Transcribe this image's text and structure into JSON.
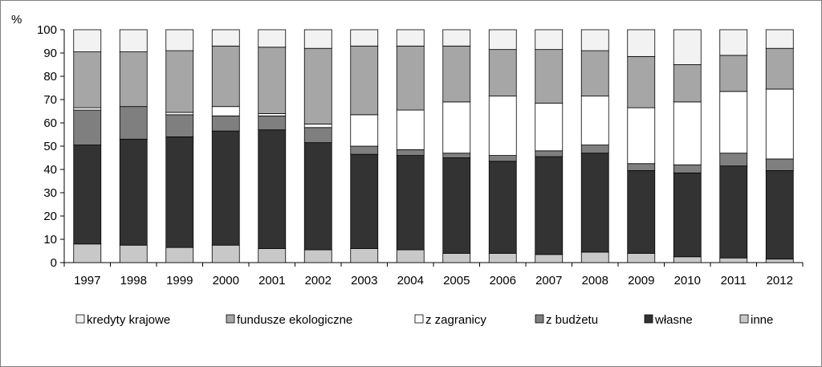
{
  "chart_data": {
    "type": "bar",
    "stacked": true,
    "title": "",
    "xlabel": "",
    "ylabel": "%",
    "ylim": [
      0,
      100
    ],
    "yticks": [
      0,
      10,
      20,
      30,
      40,
      50,
      60,
      70,
      80,
      90,
      100
    ],
    "categories": [
      "1997",
      "1998",
      "1999",
      "2000",
      "2001",
      "2002",
      "2003",
      "2004",
      "2005",
      "2006",
      "2007",
      "2008",
      "2009",
      "2010",
      "2011",
      "2012"
    ],
    "series": [
      {
        "name": "inne",
        "color": "#c8c8c8",
        "values": [
          8,
          7.5,
          6.5,
          7.5,
          6,
          5.5,
          6,
          5.5,
          4,
          4,
          3.5,
          4.5,
          4,
          2.5,
          2,
          1.5
        ]
      },
      {
        "name": "własne",
        "color": "#333333",
        "values": [
          42.5,
          45.5,
          47.5,
          49,
          51,
          46,
          40.5,
          40.5,
          41,
          39.5,
          42,
          42.5,
          35.5,
          36,
          39.5,
          38
        ]
      },
      {
        "name": "z budżetu",
        "color": "#7f7f7f",
        "values": [
          15,
          14,
          9.5,
          6.5,
          6,
          6.5,
          3.5,
          2.5,
          2,
          2.5,
          2.5,
          3.5,
          3,
          3.5,
          5.5,
          5
        ]
      },
      {
        "name": "z zagranicy",
        "color": "#ffffff",
        "values": [
          1,
          0,
          1,
          4,
          1,
          1.5,
          13.5,
          17,
          22,
          25.5,
          20.5,
          21,
          24,
          27,
          26.5,
          30
        ]
      },
      {
        "name": "fundusze ekologiczne",
        "color": "#a6a6a6",
        "values": [
          24,
          23.5,
          26.5,
          26,
          28.5,
          32.5,
          29.5,
          27.5,
          24,
          20,
          23,
          19.5,
          22,
          16,
          15.5,
          17.5
        ]
      },
      {
        "name": "kredyty krajowe",
        "color": "#f2f2f2",
        "values": [
          9.5,
          9.5,
          9,
          7,
          7.5,
          8,
          7,
          7,
          7,
          8.5,
          8.5,
          9,
          11.5,
          15,
          11,
          8
        ]
      }
    ],
    "legend_order": [
      "kredyty krajowe",
      "fundusze ekologiczne",
      "z zagranicy",
      "z budżetu",
      "własne",
      "inne"
    ],
    "legend_position": "bottom",
    "grid": false
  }
}
